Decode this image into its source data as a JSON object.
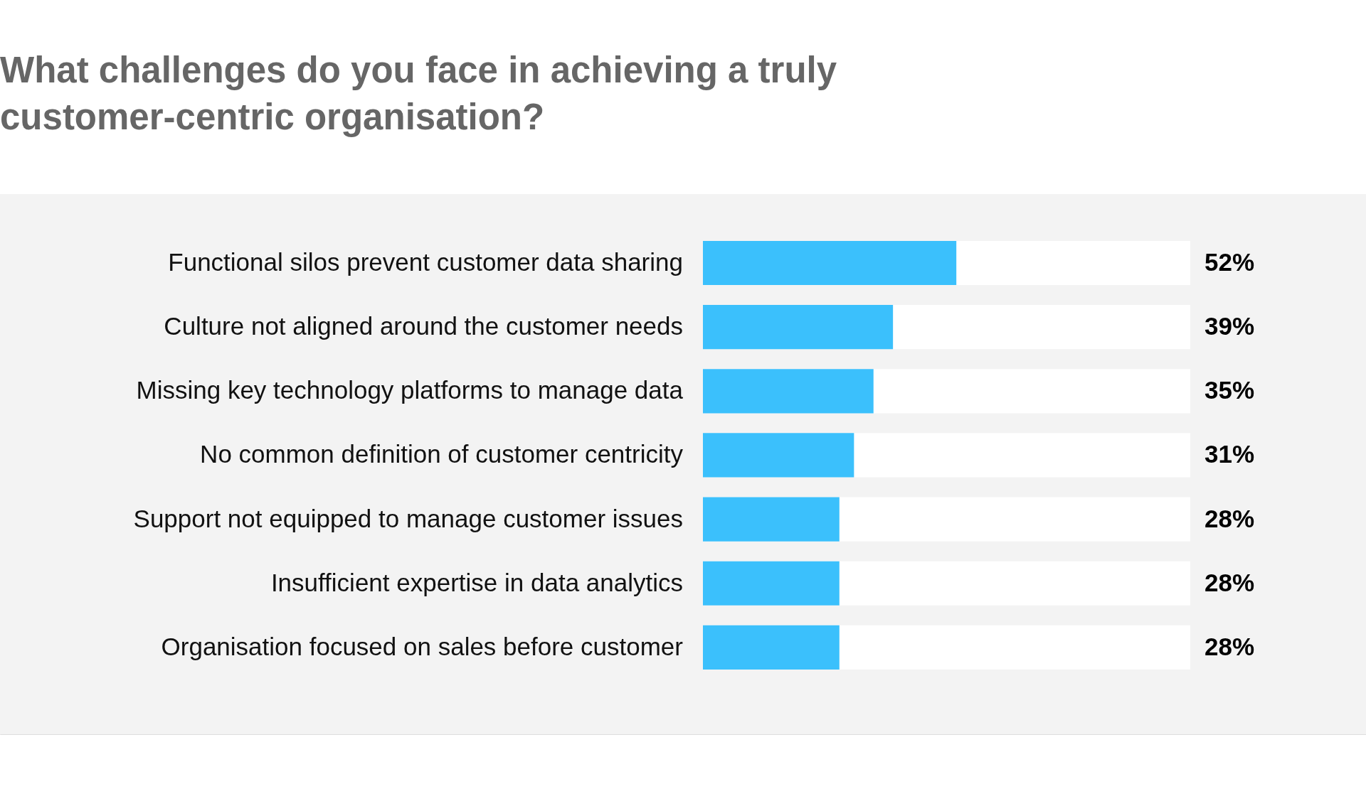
{
  "chart_data": {
    "type": "bar",
    "orientation": "horizontal",
    "title": "What challenges do you face in achieving a truly customer-centric organisation?",
    "categories": [
      "Functional silos prevent customer data sharing",
      "Culture not aligned around the customer needs",
      "Missing key technology platforms to manage data",
      "No common definition of customer centricity",
      "Support not equipped to manage customer issues",
      "Insufficient expertise in data analytics",
      "Organisation focused on sales before customer"
    ],
    "values": [
      52,
      39,
      35,
      31,
      28,
      28,
      28
    ],
    "value_labels": [
      "52%",
      "39%",
      "35%",
      "31%",
      "28%",
      "28%",
      "28%"
    ],
    "color": "#3bc0fc",
    "xlim": [
      0,
      100
    ]
  }
}
